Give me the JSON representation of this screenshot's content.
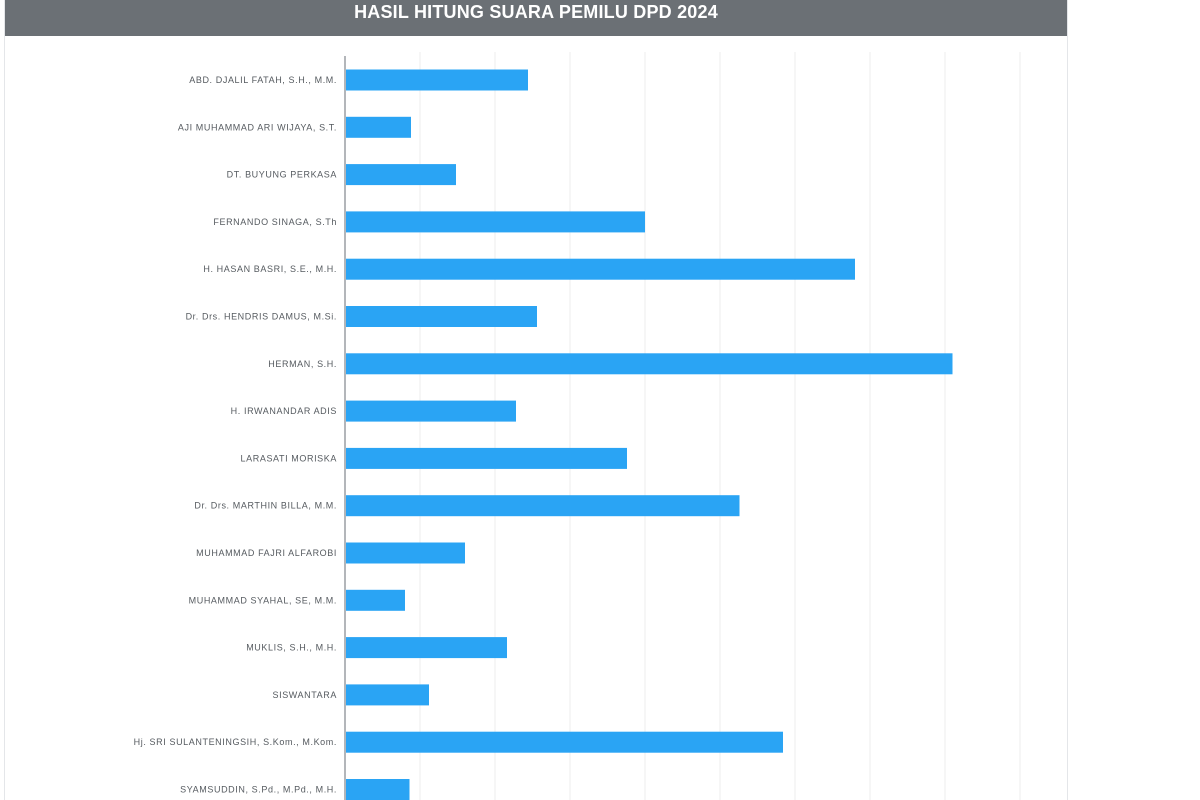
{
  "header": {
    "title": "HASIL HITUNG SUARA PEMILU DPD 2024"
  },
  "colors": {
    "bar": "#2aa4f4",
    "header_bg": "#6b7075",
    "grid": "#eeeeee",
    "axis": "#9a9ea3"
  },
  "chart_data": {
    "type": "bar",
    "orientation": "horizontal",
    "title": "HASIL HITUNG SUARA PEMILU DPD 2024",
    "xlabel": "",
    "ylabel": "",
    "grid": true,
    "xlim": [
      0,
      450
    ],
    "categories": [
      "ABD. DJALIL FATAH, S.H., M.M.",
      "AJI MUHAMMAD ARI WIJAYA, S.T.",
      "DT. BUYUNG PERKASA",
      "FERNANDO SINAGA, S.Th",
      "H. HASAN BASRI, S.E., M.H.",
      "Dr. Drs. HENDRIS DAMUS, M.Si.",
      "HERMAN, S.H.",
      "H. IRWANANDAR ADIS",
      "LARASATI MORISKA",
      "Dr. Drs. MARTHIN BILLA, M.M.",
      "MUHAMMAD FAJRI ALFAROBI",
      "MUHAMMAD SYAHAL, SE, M.M.",
      "MUKLIS, S.H., M.H.",
      "SISWANTARA",
      "Hj. SRI SULANTENINGSIH, S.Kom., M.Kom.",
      "SYAMSUDDIN, S.Pd., M.Pd., M.H."
    ],
    "values": [
      122,
      44,
      74,
      200,
      340,
      128,
      405,
      114,
      188,
      263,
      80,
      40,
      108,
      56,
      292,
      43
    ]
  }
}
